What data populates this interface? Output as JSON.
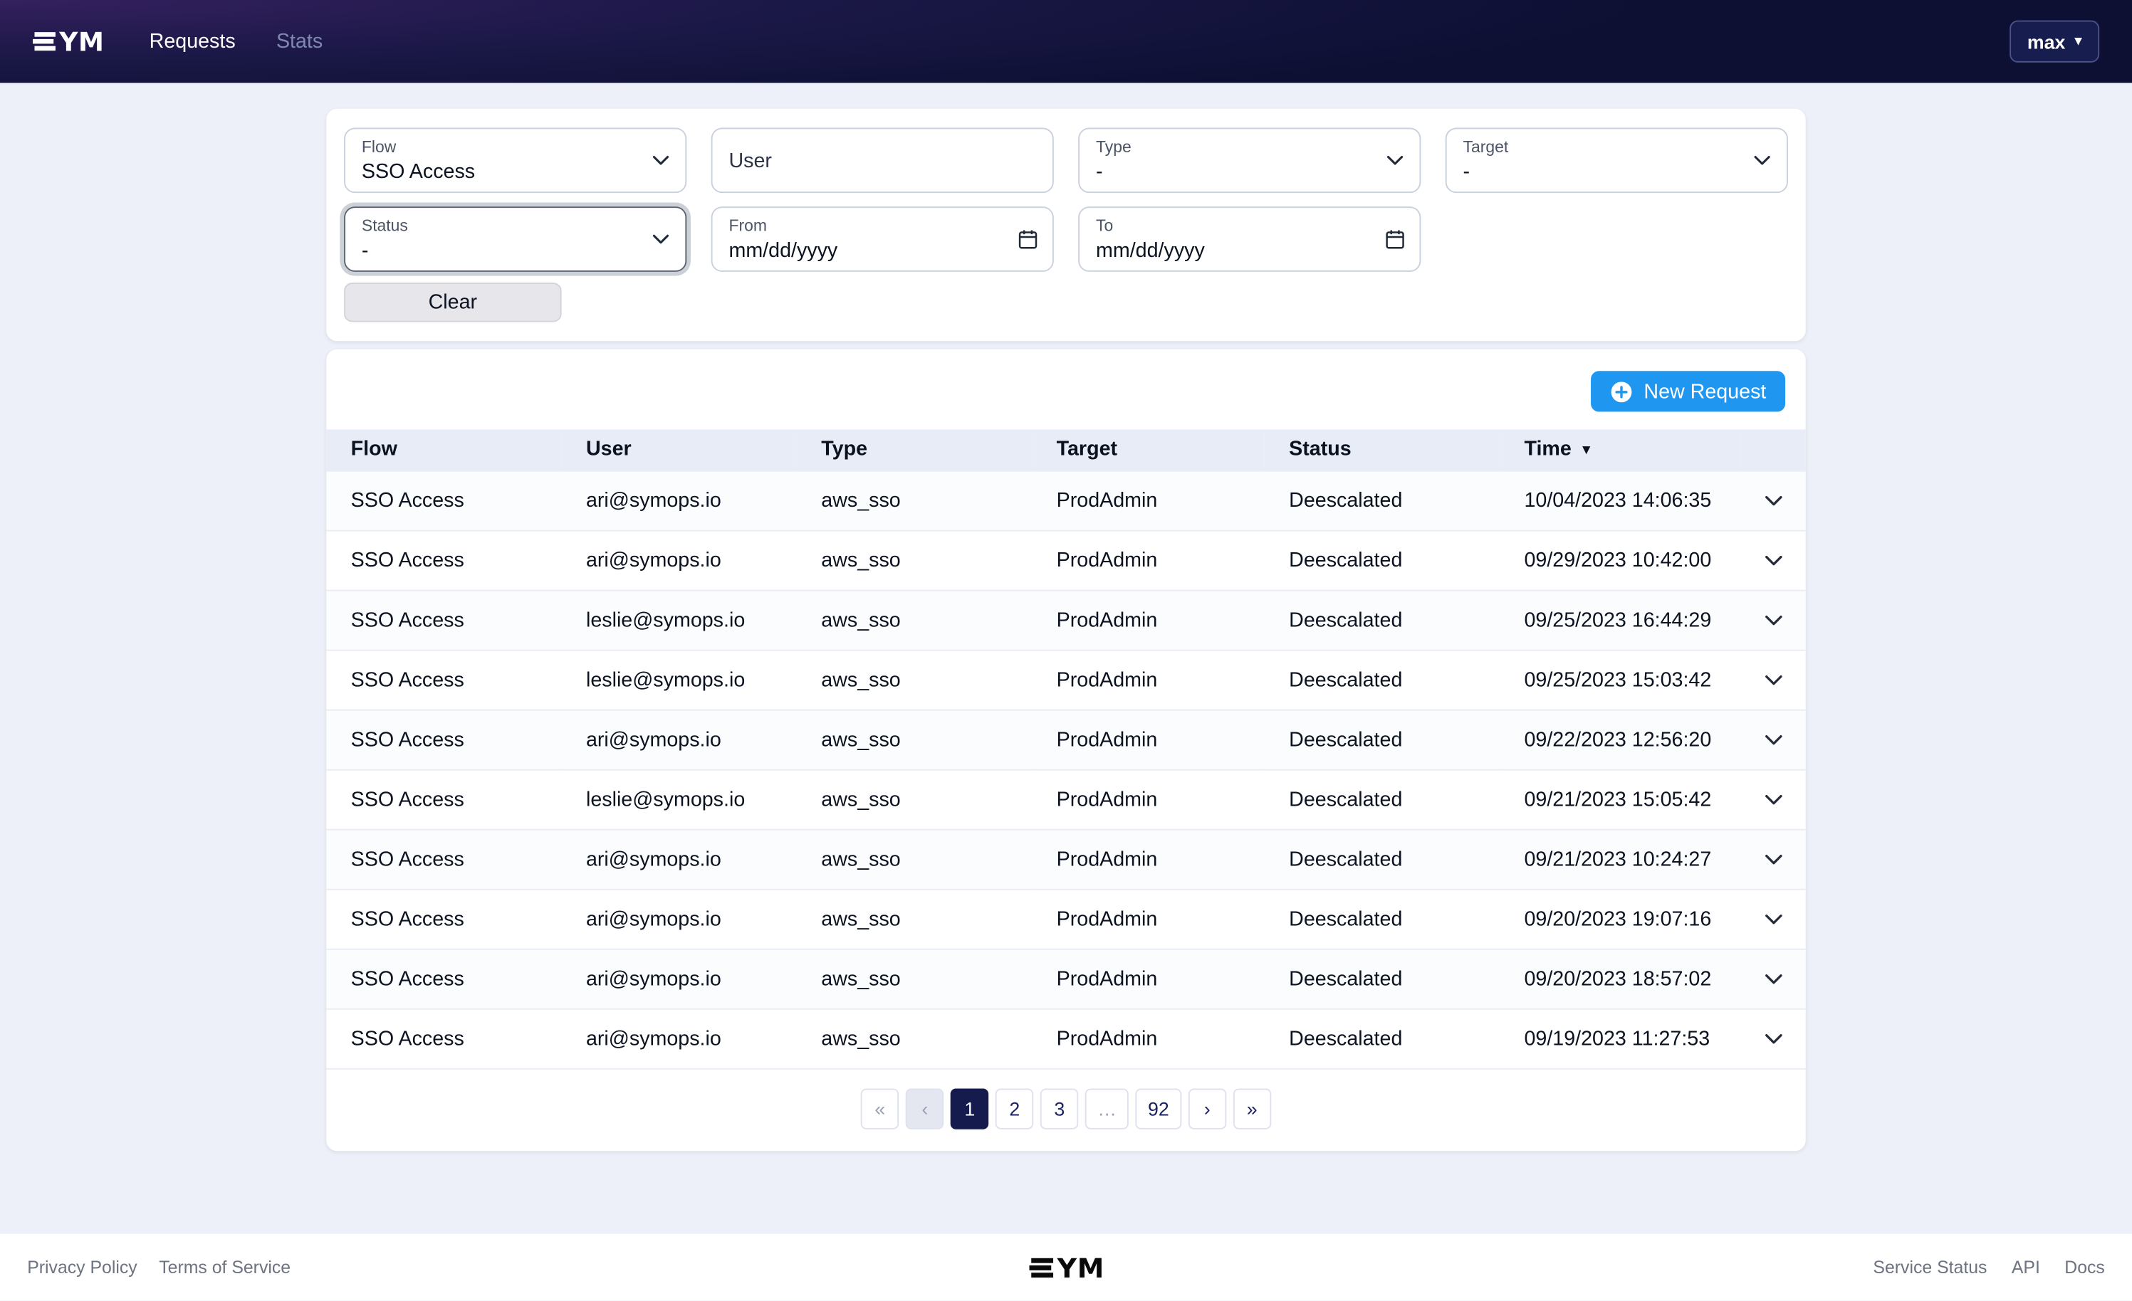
{
  "navbar": {
    "brand": "SYM",
    "links": [
      {
        "label": "Requests",
        "active": true
      },
      {
        "label": "Stats",
        "active": false
      }
    ],
    "user_menu_label": "max"
  },
  "filters": {
    "flow_label": "Flow",
    "flow_value": "SSO Access",
    "user_placeholder": "User",
    "type_label": "Type",
    "type_value": "-",
    "target_label": "Target",
    "target_value": "-",
    "status_label": "Status",
    "status_value": "-",
    "from_label": "From",
    "from_value": "mm/dd/yyyy",
    "to_label": "To",
    "to_value": "mm/dd/yyyy",
    "clear_label": "Clear"
  },
  "table": {
    "new_request_label": "New Request",
    "columns": [
      "Flow",
      "User",
      "Type",
      "Target",
      "Status",
      "Time"
    ],
    "sorted_by": "Time",
    "sort_direction": "desc",
    "rows": [
      {
        "flow": "SSO Access",
        "user": "ari@symops.io",
        "type": "aws_sso",
        "target": "ProdAdmin",
        "status": "Deescalated",
        "time": "10/04/2023 14:06:35"
      },
      {
        "flow": "SSO Access",
        "user": "ari@symops.io",
        "type": "aws_sso",
        "target": "ProdAdmin",
        "status": "Deescalated",
        "time": "09/29/2023 10:42:00"
      },
      {
        "flow": "SSO Access",
        "user": "leslie@symops.io",
        "type": "aws_sso",
        "target": "ProdAdmin",
        "status": "Deescalated",
        "time": "09/25/2023 16:44:29"
      },
      {
        "flow": "SSO Access",
        "user": "leslie@symops.io",
        "type": "aws_sso",
        "target": "ProdAdmin",
        "status": "Deescalated",
        "time": "09/25/2023 15:03:42"
      },
      {
        "flow": "SSO Access",
        "user": "ari@symops.io",
        "type": "aws_sso",
        "target": "ProdAdmin",
        "status": "Deescalated",
        "time": "09/22/2023 12:56:20"
      },
      {
        "flow": "SSO Access",
        "user": "leslie@symops.io",
        "type": "aws_sso",
        "target": "ProdAdmin",
        "status": "Deescalated",
        "time": "09/21/2023 15:05:42"
      },
      {
        "flow": "SSO Access",
        "user": "ari@symops.io",
        "type": "aws_sso",
        "target": "ProdAdmin",
        "status": "Deescalated",
        "time": "09/21/2023 10:24:27"
      },
      {
        "flow": "SSO Access",
        "user": "ari@symops.io",
        "type": "aws_sso",
        "target": "ProdAdmin",
        "status": "Deescalated",
        "time": "09/20/2023 19:07:16"
      },
      {
        "flow": "SSO Access",
        "user": "ari@symops.io",
        "type": "aws_sso",
        "target": "ProdAdmin",
        "status": "Deescalated",
        "time": "09/20/2023 18:57:02"
      },
      {
        "flow": "SSO Access",
        "user": "ari@symops.io",
        "type": "aws_sso",
        "target": "ProdAdmin",
        "status": "Deescalated",
        "time": "09/19/2023 11:27:53"
      }
    ]
  },
  "pagination": {
    "items": [
      {
        "name": "first",
        "label": "«",
        "disabled": true
      },
      {
        "name": "prev",
        "label": "‹",
        "disabled": true,
        "dim": true
      },
      {
        "name": "1",
        "label": "1",
        "active": true
      },
      {
        "name": "2",
        "label": "2"
      },
      {
        "name": "3",
        "label": "3"
      },
      {
        "name": "ellipsis",
        "label": "…",
        "disabled": true
      },
      {
        "name": "92",
        "label": "92"
      },
      {
        "name": "next",
        "label": "›"
      },
      {
        "name": "last",
        "label": "»"
      }
    ]
  },
  "footer": {
    "left_links": [
      "Privacy Policy",
      "Terms of Service"
    ],
    "brand": "SYM",
    "right_links": [
      "Service Status",
      "API",
      "Docs"
    ]
  },
  "icons": {
    "caret_down": "▾",
    "sort_desc": "▼"
  },
  "colors": {
    "navbar_bg": "#0d1033",
    "accent_blue": "#1f97f1",
    "active_page_bg": "#151b4d",
    "table_header_bg": "#e8ecf7",
    "page_bg": "#edf0f8"
  }
}
